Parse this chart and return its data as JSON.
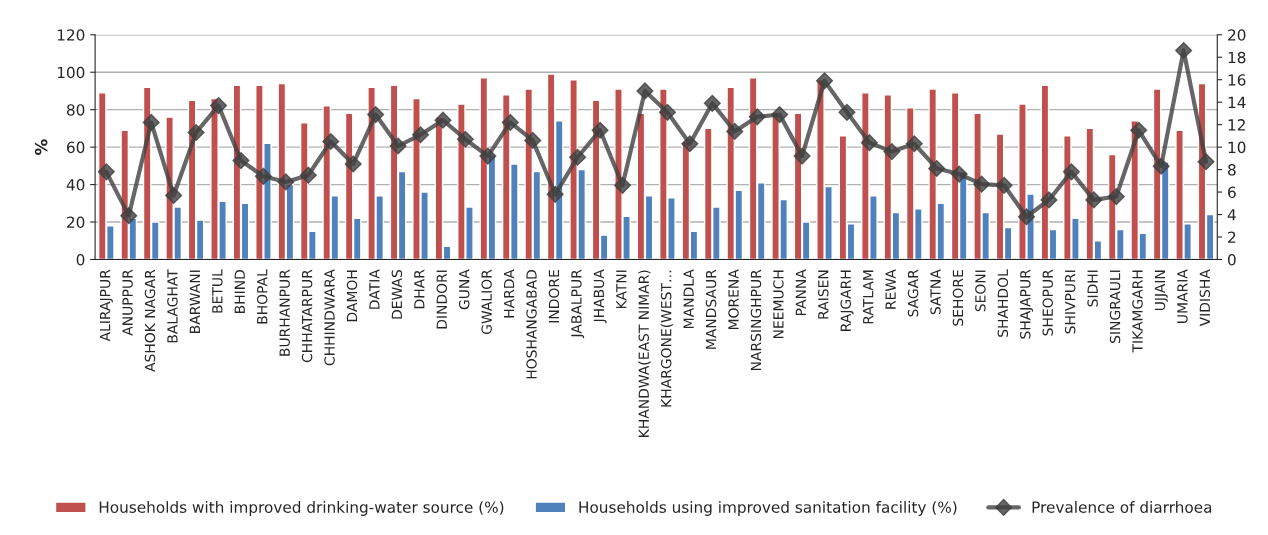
{
  "chart_data": {
    "type": "bar",
    "ylabel": "%",
    "categories": [
      "ALIRAJPUR",
      "ANUPPUR",
      "ASHOK NAGAR",
      "BALAGHAT",
      "BARWANI",
      "BETUL",
      "BHIND",
      "BHOPAL",
      "BURHANPUR",
      "CHHATARPUR",
      "CHHINDWARA",
      "DAMOH",
      "DATIA",
      "DEWAS",
      "DHAR",
      "DINDORI",
      "GUNA",
      "GWALIOR",
      "HARDA",
      "HOSHANGABAD",
      "INDORE",
      "JABALPUR",
      "JHABUA",
      "KATNI",
      "KHANDWA(EAST NIMAR)",
      "KHARGONE(WEST…",
      "MANDLA",
      "MANDSAUR",
      "MORENA",
      "NARSINGHPUR",
      "NEEMUCH",
      "PANNA",
      "RAISEN",
      "RAJGARH",
      "RATLAM",
      "REWA",
      "SAGAR",
      "SATNA",
      "SEHORE",
      "SEONI",
      "SHAHDOL",
      "SHAJAPUR",
      "SHEOPUR",
      "SHIVPURI",
      "SIDHI",
      "SINGRAULI",
      "TIKAMGARH",
      "UJJAIN",
      "UMARIA",
      "VIDISHA"
    ],
    "series": [
      {
        "name": "Households with improved drinking-water source (%)",
        "color": "#c0504d",
        "values": [
          89,
          69,
          92,
          76,
          85,
          86,
          93,
          93,
          94,
          73,
          82,
          78,
          92,
          93,
          86,
          76,
          83,
          97,
          88,
          91,
          99,
          96,
          85,
          91,
          78,
          91,
          63,
          70,
          92,
          97,
          78,
          78,
          96,
          66,
          89,
          88,
          81,
          91,
          89,
          78,
          67,
          83,
          93,
          66,
          70,
          56,
          74,
          91,
          69,
          94
        ]
      },
      {
        "name": "Households using improved sanitation facility (%)",
        "color": "#4f81bd",
        "values": [
          18,
          22,
          20,
          28,
          21,
          31,
          30,
          62,
          40,
          15,
          34,
          22,
          34,
          47,
          36,
          7,
          28,
          56,
          51,
          47,
          74,
          48,
          13,
          23,
          34,
          33,
          15,
          28,
          37,
          41,
          32,
          20,
          39,
          19,
          34,
          25,
          27,
          30,
          47,
          25,
          17,
          35,
          16,
          22,
          10,
          16,
          14,
          52,
          19,
          24
        ]
      },
      {
        "name": "Prevalence of diarrhoea",
        "type": "line",
        "axis": "y2",
        "color": "#404040",
        "marker": "diamond",
        "values": [
          7.8,
          3.9,
          12.2,
          5.7,
          11.3,
          13.7,
          8.8,
          7.4,
          6.9,
          7.5,
          10.5,
          8.5,
          12.9,
          10.1,
          11.1,
          12.4,
          10.7,
          9.2,
          12.2,
          10.6,
          5.8,
          9.1,
          11.5,
          6.6,
          15.0,
          13.1,
          10.3,
          13.9,
          11.4,
          12.7,
          12.9,
          9.2,
          15.9,
          13.1,
          10.4,
          9.6,
          10.3,
          8.1,
          7.6,
          6.7,
          6.6,
          3.8,
          5.3,
          7.8,
          5.3,
          5.6,
          11.5,
          8.3,
          18.6,
          8.7
        ]
      }
    ],
    "ylim": [
      0,
      120
    ],
    "yticks": [
      0,
      20,
      40,
      60,
      80,
      100,
      120
    ],
    "y2lim": [
      0,
      20
    ],
    "y2ticks": [
      0,
      2,
      4,
      6,
      8,
      10,
      12,
      14,
      16,
      18,
      20
    ],
    "grid": "y",
    "legend": "bottom"
  }
}
